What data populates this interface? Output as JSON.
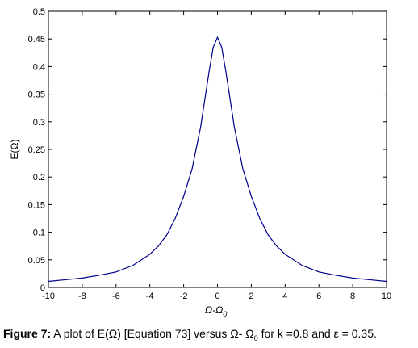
{
  "chart_data": {
    "type": "line",
    "title": "",
    "xlabel_main": "Ω-Ω",
    "xlabel_sub": "0",
    "ylabel": "E(Ω)",
    "xlim": [
      -10,
      10
    ],
    "ylim": [
      0,
      0.5
    ],
    "xticks": [
      -10,
      -8,
      -6,
      -4,
      -2,
      0,
      2,
      4,
      6,
      8,
      10
    ],
    "yticks": [
      0,
      0.05,
      0.1,
      0.15,
      0.2,
      0.25,
      0.3,
      0.35,
      0.4,
      0.45,
      0.5
    ],
    "xtick_labels": [
      "-10",
      "-8",
      "-6",
      "-4",
      "-2",
      "0",
      "2",
      "4",
      "6",
      "8",
      "10"
    ],
    "ytick_labels": [
      "0",
      "0.05",
      "0.1",
      "0.15",
      "0.2",
      "0.25",
      "0.3",
      "0.35",
      "0.4",
      "0.45",
      "0.5"
    ],
    "grid": false,
    "line_color": "#00008b",
    "series": [
      {
        "x": [
          -10,
          -9,
          -8,
          -7,
          -6,
          -5,
          -4,
          -3.5,
          -3,
          -2.5,
          -2,
          -1.5,
          -1,
          -0.5,
          -0.25,
          0,
          0.25,
          0.5,
          1,
          1.5,
          2,
          2.5,
          3,
          3.5,
          4,
          5,
          6,
          7,
          8,
          9,
          10
        ],
        "y": [
          0.011,
          0.014,
          0.017,
          0.022,
          0.028,
          0.04,
          0.06,
          0.075,
          0.095,
          0.125,
          0.165,
          0.215,
          0.29,
          0.39,
          0.435,
          0.453,
          0.435,
          0.39,
          0.29,
          0.215,
          0.165,
          0.125,
          0.095,
          0.075,
          0.06,
          0.04,
          0.028,
          0.022,
          0.017,
          0.014,
          0.011
        ]
      }
    ]
  },
  "caption": {
    "label": "Figure 7:",
    "text_before": " A plot of E(Ω) [Equation 73] versus  Ω- Ω",
    "sub": "0",
    "text_after": " for k =0.8 and ε = 0.35."
  }
}
